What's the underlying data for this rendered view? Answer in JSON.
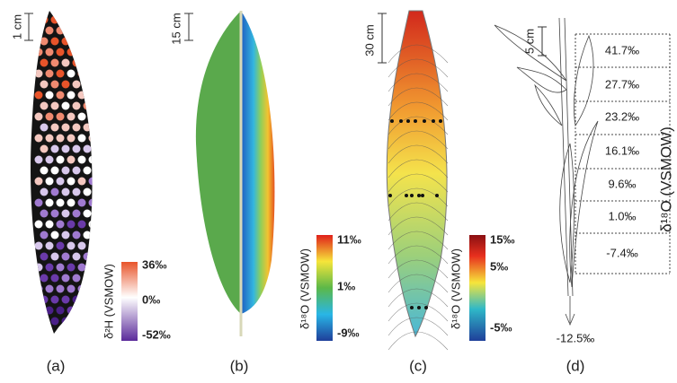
{
  "panels": [
    {
      "label": "(a)",
      "scale": "1 cm",
      "axis_title": "δ²H (VSMOW)",
      "colorbar": [
        "36‰",
        "0‰",
        "-52‰"
      ]
    },
    {
      "label": "(b)",
      "scale": "15 cm",
      "axis_title": "δ¹⁸O (VSMOW)",
      "colorbar": [
        "11‰",
        "1‰",
        "-9‰"
      ]
    },
    {
      "label": "(c)",
      "scale": "30 cm",
      "axis_title": "δ¹⁸O (VSMOW)",
      "colorbar": [
        "15‰",
        "5‰",
        "-5‰"
      ]
    },
    {
      "label": "(d)",
      "scale": "5 cm",
      "axis_title": "δ¹⁸O (VSMOW)",
      "segments": [
        "41.7‰",
        "27.7‰",
        "23.2‰",
        "16.1‰",
        "9.6‰",
        "1.0‰",
        "-7.4‰"
      ],
      "base": "-12.5‰"
    }
  ]
}
